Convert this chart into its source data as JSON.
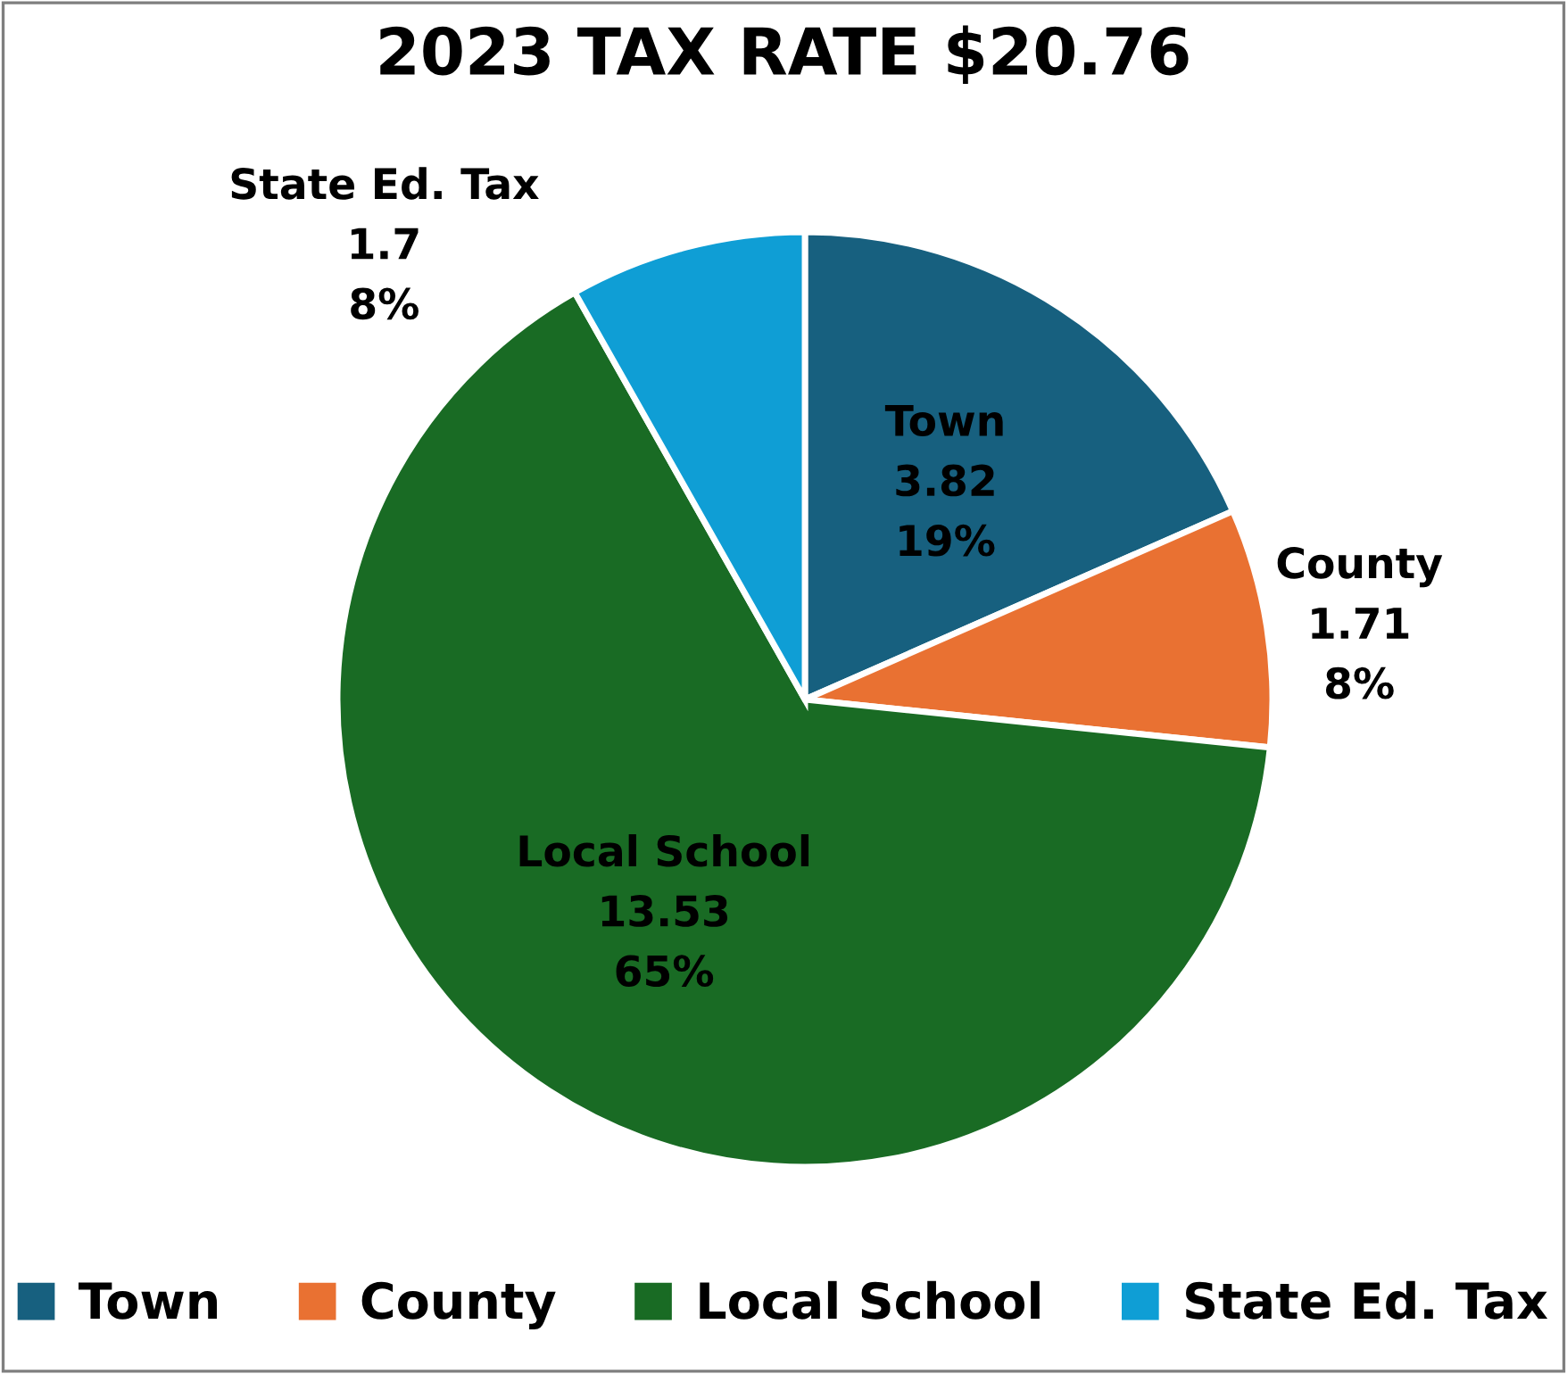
{
  "chart_data": {
    "type": "pie",
    "title": "2023 TAX RATE $20.76",
    "categories": [
      "Town",
      "County",
      "Local School",
      "State Ed. Tax"
    ],
    "values": [
      3.82,
      1.71,
      13.53,
      1.7
    ],
    "colors": [
      "#17607f",
      "#e97132",
      "#196b24",
      "#0f9ed5"
    ],
    "value_labels": [
      "3.82\n19%",
      "1.71\n8%",
      "13.53\n65%",
      "1.7\n8%"
    ],
    "legend": "bottom"
  }
}
